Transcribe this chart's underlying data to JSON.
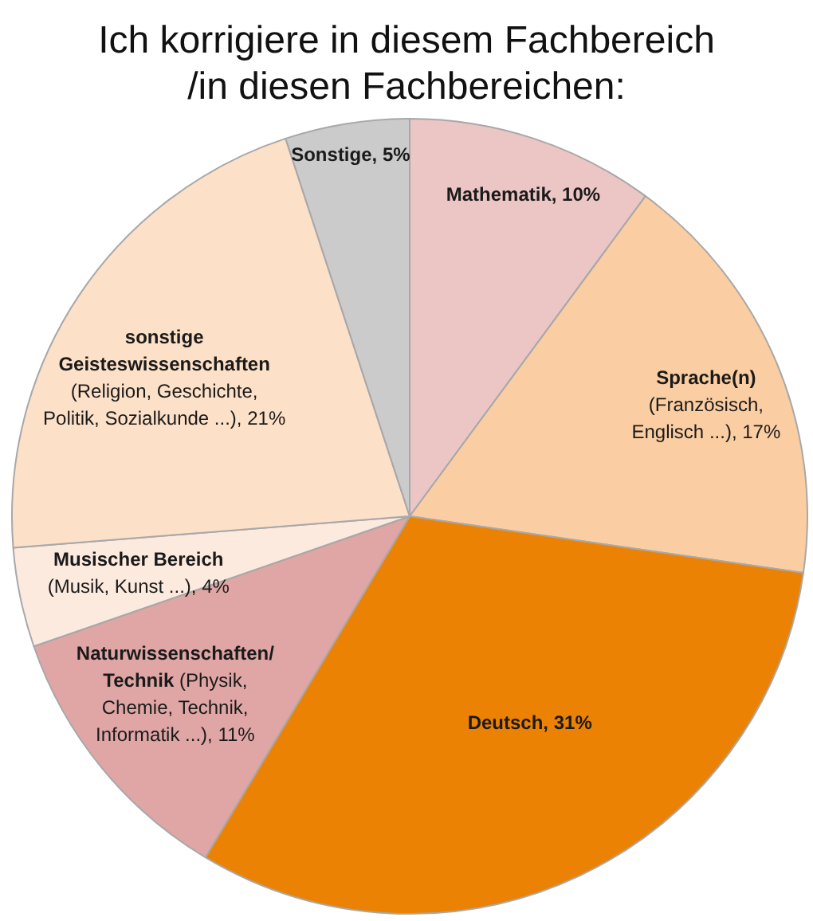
{
  "chart_data": {
    "type": "pie",
    "title": "Ich korrigiere in diesem Fachbereich /in diesen Fachbereichen:",
    "categories": [
      "Mathematik",
      "Sprache(n) (Französisch, Englisch ...)",
      "Deutsch",
      "Naturwissenschaften/ Technik (Physik, Chemie, Technik, Informatik ...)",
      "Musischer Bereich (Musik, Kunst ...)",
      "sonstige Geisteswissenschaften (Religion, Geschichte, Politik, Sozialkunde ...)",
      "Sonstige"
    ],
    "values": [
      10,
      17,
      31,
      11,
      4,
      21,
      5
    ],
    "colors": [
      "#ecc5c5",
      "#fbcda2",
      "#ec8203",
      "#dfa6a5",
      "#fdeadf",
      "#fde0c8",
      "#cbcbcb"
    ],
    "value_labels": [
      "10%",
      "17%",
      "31%",
      "11%",
      "4%",
      "21%",
      "5%"
    ],
    "legend": false
  }
}
